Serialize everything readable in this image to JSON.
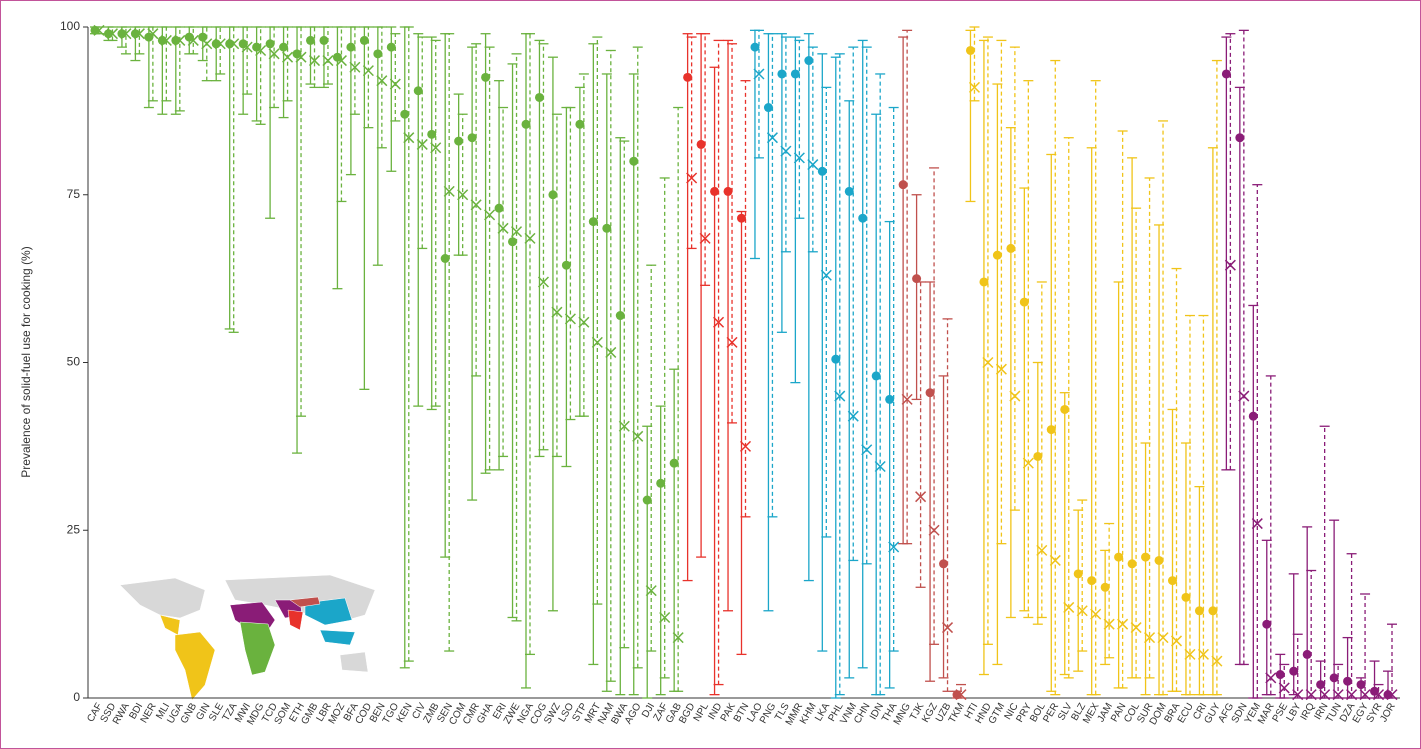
{
  "chart_data": {
    "type": "errorbar",
    "y_label": "Prevalence of solid-fuel use for cooking (%)",
    "ylim": [
      0,
      100
    ],
    "yticks": [
      0,
      25,
      50,
      75,
      100
    ],
    "groups": [
      {
        "color": "#6ab23e",
        "categories": [
          "CAF",
          "SSD",
          "RWA",
          "BDI",
          "NER",
          "MLI",
          "UGA",
          "GNB",
          "GIN",
          "SLE",
          "TZA",
          "MWI",
          "MDG",
          "TCD",
          "SOM",
          "ETH",
          "GMB",
          "LBR",
          "MOZ",
          "BFA",
          "COD",
          "BEN",
          "TGO",
          "KEN",
          "CIV",
          "ZMB",
          "SEN",
          "COM",
          "CMR",
          "GHA",
          "ERI",
          "ZWE",
          "NGA",
          "COG",
          "SWZ",
          "LSO",
          "STP",
          "MRT",
          "NAM",
          "BWA",
          "AGO",
          "DJI",
          "ZAF",
          "GAB"
        ],
        "dot": [
          99.5,
          99,
          99,
          99,
          98.5,
          98,
          98,
          98.5,
          98.5,
          97.5,
          97.5,
          97.5,
          97,
          97.5,
          97,
          96,
          98,
          98,
          95.5,
          97,
          98,
          96,
          97,
          87,
          90.5,
          84,
          65.5,
          83,
          83.5,
          92.5,
          73,
          68,
          85.5,
          89.5,
          75,
          64.5,
          85.5,
          71,
          70,
          57,
          80,
          29.5,
          32,
          35
        ],
        "dot_low": [
          99,
          98,
          97,
          95,
          88,
          87,
          87,
          96,
          95,
          92,
          55,
          87,
          86,
          71.5,
          86.5,
          36.5,
          91.5,
          91,
          61,
          78,
          46,
          64.5,
          78.5,
          4.5,
          43.5,
          43,
          21,
          66,
          29.5,
          33.5,
          34,
          12,
          1.5,
          36,
          13,
          34.5,
          42,
          5,
          1,
          0.5,
          0.5,
          0,
          0.5,
          1
        ],
        "dot_high": [
          100,
          100,
          100,
          100,
          100,
          100,
          100,
          100,
          100,
          100,
          100,
          100,
          100,
          100,
          100,
          100,
          100,
          100,
          100,
          100,
          100,
          100,
          100,
          100,
          99,
          98.5,
          99,
          90,
          97,
          99,
          92,
          94.5,
          99,
          98,
          95.5,
          88,
          91,
          97.5,
          93,
          83.5,
          93,
          40.5,
          43.5,
          49
        ],
        "cross": [
          99.5,
          99,
          99,
          99,
          99,
          98,
          98,
          98,
          97.5,
          97.5,
          97.5,
          97,
          96.5,
          96,
          95.5,
          95.5,
          95,
          95,
          95,
          94,
          93.5,
          92,
          91.5,
          83.5,
          82.5,
          82,
          75.5,
          75,
          73.5,
          72,
          70,
          69.5,
          68.5,
          62,
          57.5,
          56.5,
          56,
          53,
          51.5,
          40.5,
          39,
          16,
          12,
          9
        ],
        "cross_low": [
          99,
          98,
          96,
          96,
          89,
          89,
          87.5,
          96,
          92,
          93,
          54.5,
          90,
          85.5,
          88,
          89,
          42,
          91,
          91.5,
          74,
          87,
          85,
          82,
          86,
          5.5,
          67,
          43.5,
          7,
          66,
          48,
          34,
          36,
          11.5,
          6.5,
          37,
          36,
          41.5,
          42,
          14,
          2.5,
          7.5,
          4.5,
          7,
          3,
          1
        ],
        "cross_high": [
          100,
          100,
          100,
          100,
          100,
          100,
          100,
          100,
          100,
          100,
          100,
          100,
          100,
          100,
          100,
          100,
          100,
          100,
          100,
          100,
          100,
          100,
          99,
          100,
          98.5,
          98,
          99,
          87,
          97.5,
          97,
          88,
          96,
          99,
          97.5,
          87,
          88,
          93,
          98.5,
          96.5,
          83,
          97,
          64.5,
          77.5,
          88
        ]
      },
      {
        "color": "#e8322b",
        "categories": [
          "BGD",
          "NPL",
          "IND",
          "PAK",
          "BTN"
        ],
        "dot": [
          92.5,
          82.5,
          75.5,
          75.5,
          71.5
        ],
        "dot_low": [
          17.5,
          21,
          0.5,
          13,
          6.5
        ],
        "dot_high": [
          99,
          99,
          94,
          98,
          72.5
        ],
        "cross": [
          77.5,
          68.5,
          56,
          53,
          37.5
        ],
        "cross_low": [
          67,
          61.5,
          2,
          41,
          27
        ],
        "cross_high": [
          98.5,
          99,
          98,
          97.5,
          92
        ]
      },
      {
        "color": "#1ba6c9",
        "categories": [
          "LAO",
          "PNG",
          "TLS",
          "MMR",
          "KHM",
          "LKA",
          "PHL",
          "VNM",
          "CHN",
          "IDN",
          "THA"
        ],
        "dot": [
          97,
          88,
          93,
          93,
          95,
          78.5,
          50.5,
          75.5,
          71.5,
          48,
          44.5
        ],
        "dot_low": [
          65.5,
          13,
          54.5,
          47,
          17.5,
          7,
          0,
          3,
          4.5,
          0.5,
          1.5
        ],
        "dot_high": [
          99.5,
          99,
          99,
          98.5,
          99,
          96,
          95.5,
          89,
          98,
          87,
          71
        ],
        "cross": [
          93,
          83.5,
          81.5,
          80.5,
          79.5,
          63,
          45,
          42,
          37,
          34.5,
          22.5
        ],
        "cross_low": [
          80.5,
          27,
          66.5,
          71.5,
          66.5,
          24,
          0.5,
          20.5,
          20,
          0.5,
          7
        ],
        "cross_high": [
          99.5,
          99,
          98.5,
          98,
          97,
          91,
          96,
          97,
          97,
          93,
          88
        ]
      },
      {
        "color": "#c0504d",
        "categories": [
          "MNG",
          "TJK",
          "KGZ",
          "UZB",
          "TKM"
        ],
        "dot": [
          76.5,
          62.5,
          45.5,
          20,
          0.5
        ],
        "dot_low": [
          23,
          44.5,
          2.5,
          3,
          0
        ],
        "dot_high": [
          98.5,
          75,
          62,
          48,
          1
        ],
        "cross": [
          44.5,
          30,
          25,
          10.5,
          0.5
        ],
        "cross_low": [
          23,
          16.5,
          8,
          1,
          0
        ],
        "cross_high": [
          99.5,
          62,
          79,
          56.5,
          2
        ]
      },
      {
        "color": "#f0c419",
        "categories": [
          "HTI",
          "HND",
          "GTM",
          "NIC",
          "PRY",
          "BOL",
          "PER",
          "SLV",
          "BLZ",
          "MEX",
          "JAM",
          "PAN",
          "COL",
          "SUR",
          "DOM",
          "BRA",
          "ECU",
          "CRI",
          "GUY"
        ],
        "dot": [
          96.5,
          62,
          66,
          67,
          59,
          36,
          40,
          43,
          18.5,
          17.5,
          16.5,
          21,
          20,
          21,
          20.5,
          17.5,
          15,
          13,
          13
        ],
        "dot_low": [
          74,
          3.5,
          5,
          12,
          13,
          11,
          1,
          3.5,
          4,
          0.5,
          5,
          1.5,
          3,
          0.5,
          0.5,
          1,
          0.5,
          0.5,
          0.5
        ],
        "dot_high": [
          99.5,
          98,
          91.5,
          85,
          76,
          50,
          81,
          45.5,
          28,
          82,
          22,
          62,
          80.5,
          38,
          70.5,
          43,
          38,
          31.5,
          82
        ],
        "cross": [
          91,
          50,
          49,
          45,
          35,
          22,
          20.5,
          13.5,
          13,
          12.5,
          11,
          11,
          10.5,
          9,
          9,
          8.5,
          6.5,
          6.5,
          5.5
        ],
        "cross_low": [
          89,
          8,
          23,
          28,
          12,
          12,
          0.5,
          3,
          7,
          0.5,
          6,
          1.5,
          3,
          3,
          0.5,
          1,
          0.5,
          0.5,
          0.5
        ],
        "cross_high": [
          100,
          98.5,
          98,
          97,
          92,
          62,
          95,
          83.5,
          29.5,
          92,
          26,
          84.5,
          73,
          77.5,
          86,
          64,
          57,
          57,
          95
        ]
      },
      {
        "color": "#8a1c77",
        "categories": [
          "AFG",
          "SDN",
          "YEM",
          "MAR",
          "PSE",
          "LBY",
          "IRQ",
          "IRN",
          "TUN",
          "DZA",
          "EGY",
          "SYR",
          "JOR"
        ],
        "dot": [
          93,
          83.5,
          42,
          11,
          3.5,
          4,
          6.5,
          2,
          3,
          2.5,
          2,
          1,
          0.5
        ],
        "dot_low": [
          34,
          5,
          0,
          0.5,
          0,
          0.5,
          0,
          0,
          0,
          0,
          0,
          0,
          0
        ],
        "dot_high": [
          98.5,
          91,
          58.5,
          23.5,
          6.5,
          18.5,
          25.5,
          5.5,
          26.5,
          9,
          3,
          5.5,
          4
        ],
        "cross": [
          64.5,
          45,
          26,
          3,
          1.5,
          0.5,
          0.5,
          0.5,
          0.5,
          0.5,
          0.5,
          0.5,
          0.5
        ],
        "cross_low": [
          34,
          5,
          0,
          0.5,
          0,
          0,
          0,
          0,
          0,
          0,
          0,
          0,
          0
        ],
        "cross_high": [
          99,
          99.5,
          76.5,
          48,
          5,
          9.5,
          19,
          40.5,
          5,
          21.5,
          15.5,
          2,
          11
        ]
      }
    ]
  }
}
